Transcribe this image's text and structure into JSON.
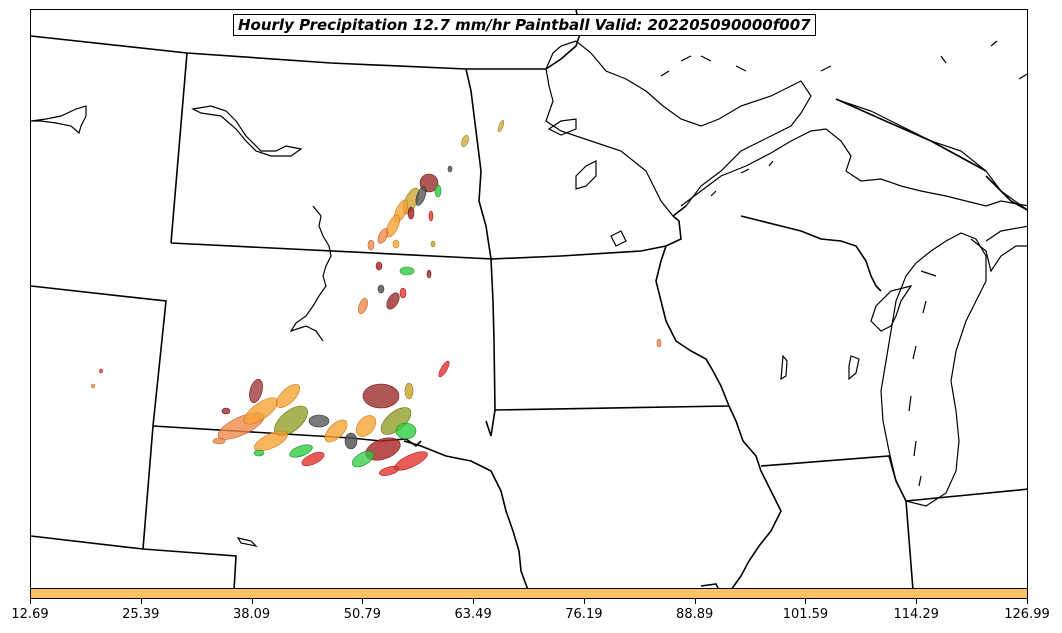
{
  "title": "Hourly Precipitation 12.7 mm/hr Paintball Valid: 202205090000f007",
  "colorbar": {
    "color": "#ffc266",
    "ticks": [
      "12.69",
      "25.39",
      "38.09",
      "50.79",
      "63.49",
      "76.19",
      "88.89",
      "101.59",
      "114.29",
      "126.99"
    ]
  },
  "member_colors": [
    "#f08a4b",
    "#f5a233",
    "#e3342f",
    "#a82323",
    "#8b9a1a",
    "#2ecc40",
    "#4d4d4d",
    "#9b2d2d",
    "#c9a227"
  ]
}
